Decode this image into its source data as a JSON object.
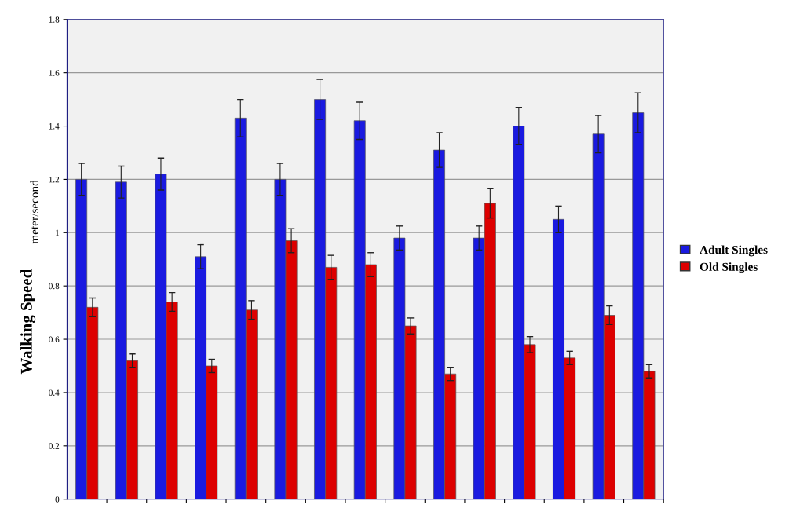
{
  "chart_data": {
    "type": "bar",
    "ylabel": "Walking Speed",
    "annotations": [
      "meter/second"
    ],
    "categories": [
      null,
      null,
      null,
      null,
      null,
      null,
      null,
      null,
      null,
      null,
      null,
      null,
      null,
      null,
      null
    ],
    "series": [
      {
        "name": "Adult Singles",
        "color": "#1a1ae0",
        "values": [
          1.2,
          1.19,
          1.22,
          0.91,
          1.43,
          1.2,
          1.5,
          1.42,
          0.98,
          1.31,
          0.98,
          1.4,
          1.05,
          1.37,
          1.45
        ],
        "errors": [
          0.06,
          0.06,
          0.06,
          0.045,
          0.07,
          0.06,
          0.075,
          0.07,
          0.045,
          0.065,
          0.045,
          0.07,
          0.05,
          0.07,
          0.075
        ]
      },
      {
        "name": "Old Singles",
        "color": "#dd0000",
        "values": [
          0.72,
          0.52,
          0.74,
          0.5,
          0.71,
          0.97,
          0.87,
          0.88,
          0.65,
          0.47,
          1.11,
          0.58,
          0.53,
          0.69,
          0.48
        ],
        "errors": [
          0.035,
          0.025,
          0.035,
          0.025,
          0.035,
          0.045,
          0.045,
          0.045,
          0.03,
          0.025,
          0.055,
          0.03,
          0.025,
          0.035,
          0.025
        ]
      }
    ],
    "ylim": [
      0,
      1.8
    ],
    "yticks": [
      0,
      0.2,
      0.4,
      0.6,
      0.8,
      1,
      1.2,
      1.4,
      1.6,
      1.8
    ],
    "grid": "y",
    "legend": "right"
  }
}
